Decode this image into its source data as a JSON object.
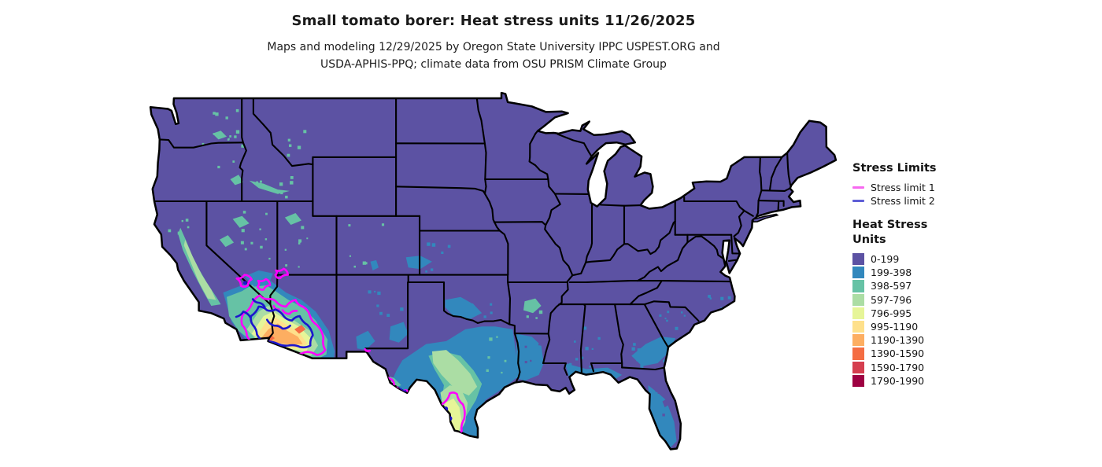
{
  "header": {
    "title": "Small tomato borer: Heat stress units 11/26/2025",
    "subtitle_line1": "Maps and modeling 12/29/2025 by Oregon State University IPPC USPEST.ORG and",
    "subtitle_line2": "USDA-APHIS-PPQ; climate data from OSU PRISM Climate Group"
  },
  "legend": {
    "stress_limits": {
      "title": "Stress Limits",
      "items": [
        {
          "label": "Stress limit 1",
          "color": "#f768f0"
        },
        {
          "label": "Stress limit 2",
          "color": "#5e5ed6"
        }
      ]
    },
    "heat_stress": {
      "title_line1": "Heat Stress",
      "title_line2": "Units",
      "classes": [
        {
          "label": "0-199",
          "color": "#5C52A3"
        },
        {
          "label": "199-398",
          "color": "#3288BD"
        },
        {
          "label": "398-597",
          "color": "#66C2A5"
        },
        {
          "label": "597-796",
          "color": "#ABDDA4"
        },
        {
          "label": "796-995",
          "color": "#E6F598"
        },
        {
          "label": "995-1190",
          "color": "#FEE08B"
        },
        {
          "label": "1190-1390",
          "color": "#FDAE61"
        },
        {
          "label": "1390-1590",
          "color": "#F46D43"
        },
        {
          "label": "1590-1790",
          "color": "#D53E4F"
        },
        {
          "label": "1790-1990",
          "color": "#9E0142"
        }
      ]
    }
  },
  "map": {
    "background_color": "#ffffff",
    "border_color": "#000000",
    "stress_limit_1_color": "#FF00FF",
    "stress_limit_2_color": "#1C16CE"
  },
  "chart_data": {
    "type": "heatmap",
    "title": "Small tomato borer: Heat stress units 11/26/2025",
    "subtitle": "Maps and modeling 12/29/2025 by Oregon State University IPPC USPEST.ORG and USDA-APHIS-PPQ; climate data from OSU PRISM Climate Group",
    "region": "Contiguous United States choropleth raster of accumulated heat stress units",
    "classes": [
      "0-199",
      "199-398",
      "398-597",
      "597-796",
      "796-995",
      "995-1190",
      "1190-1390",
      "1390-1590",
      "1590-1790",
      "1790-1990"
    ],
    "class_colors": [
      "#5C52A3",
      "#3288BD",
      "#66C2A5",
      "#ABDDA4",
      "#E6F598",
      "#FEE08B",
      "#FDAE61",
      "#F46D43",
      "#D53E4F",
      "#9E0142"
    ],
    "legend_position": "right",
    "observations": [
      {
        "area": "Northern/eastern US, Rockies, Appalachia",
        "value_class": "0-199"
      },
      {
        "area": "Gulf coastal plain, Florida peninsula, Louisiana, central Texas, SE coastal plain",
        "value_class": "199-398"
      },
      {
        "area": "Central Texas swath, California Central Valley, Mojave/Sonoran fringe",
        "value_class": "398-597 to 597-796"
      },
      {
        "area": "South Texas (Laredo area)",
        "value_class": "796-995 core with Stress limit 1 contour and Stress limit 2 dots"
      },
      {
        "area": "Southern Arizona / SE California (Yuma, Phoenix)",
        "value_class": "995-1390 with 1390-1590 spots; ringed by Stress limit 1 (magenta) and Stress limit 2 (blue) contours"
      },
      {
        "area": "Las Vegas / Death Valley / St. George and Big Bend TX",
        "value_class": "isolated Stress limit 1 contour pockets"
      }
    ]
  }
}
